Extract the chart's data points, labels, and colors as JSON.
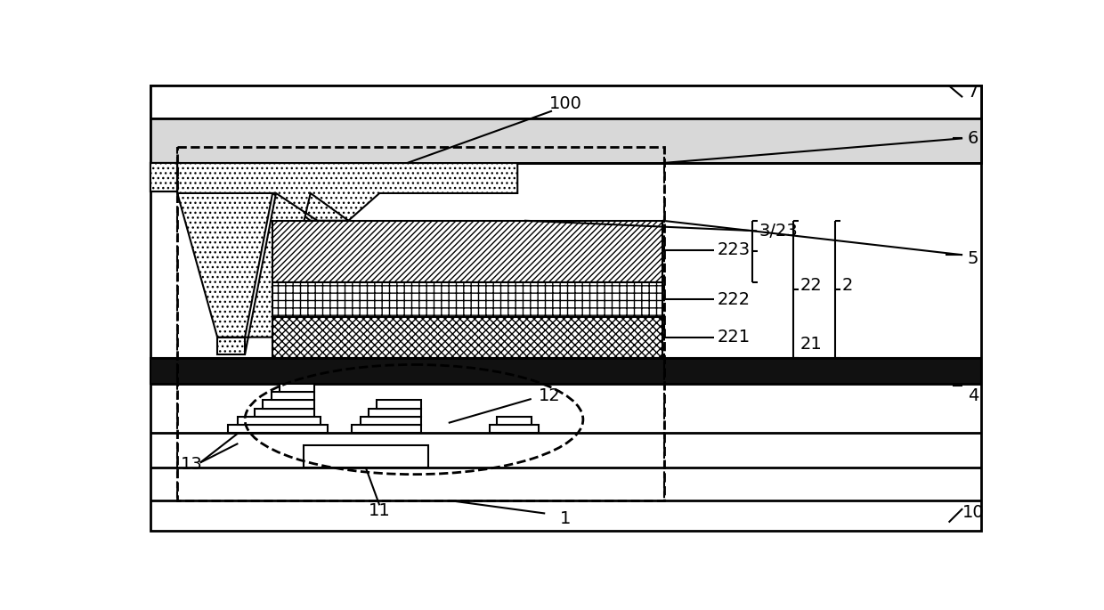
{
  "bg_color": "#ffffff",
  "fig_width": 12.4,
  "fig_height": 6.85,
  "dpi": 100
}
